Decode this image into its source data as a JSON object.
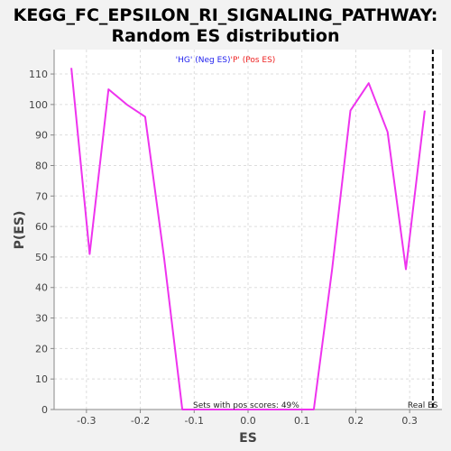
{
  "chart_data": {
    "type": "line",
    "title_line1": "KEGG_FC_EPSILON_RI_SIGNALING_PATHWAY:",
    "title_line2": "Random ES distribution",
    "xlabel": "ES",
    "ylabel": "P(ES)",
    "xlim": [
      -0.36,
      0.36
    ],
    "ylim": [
      0,
      118
    ],
    "xticks": [
      -0.3,
      -0.2,
      -0.1,
      0.0,
      0.1,
      0.2,
      0.3
    ],
    "xtick_labels": [
      "-0.3",
      "-0.2",
      "-0.1",
      "0.0",
      "0.1",
      "0.2",
      "0.3"
    ],
    "yticks": [
      0,
      10,
      20,
      30,
      40,
      50,
      60,
      70,
      80,
      90,
      100,
      110
    ],
    "ytick_labels": [
      "0",
      "10",
      "20",
      "30",
      "40",
      "50",
      "60",
      "70",
      "80",
      "90",
      "100",
      "110"
    ],
    "grid": true,
    "legend": {
      "placement": "top-center",
      "items": [
        {
          "text": "'HG' (Neg ES)",
          "color": "#2222ee"
        },
        {
          "text": "'P' (Pos ES)",
          "color": "#ee2222"
        }
      ]
    },
    "series": [
      {
        "color": "#ee33ee",
        "x": [
          -0.328,
          -0.294,
          -0.259,
          -0.225,
          -0.191,
          -0.156,
          -0.122,
          0.122,
          0.156,
          0.19,
          0.224,
          0.259,
          0.293,
          0.328
        ],
        "y": [
          112,
          51,
          105,
          100,
          96,
          50,
          0,
          0,
          46,
          98,
          107,
          91,
          46,
          98
        ]
      }
    ],
    "annotation": "Sets with pos scores: 49%",
    "real_es": {
      "x": 0.343,
      "label": "Real ES"
    }
  }
}
